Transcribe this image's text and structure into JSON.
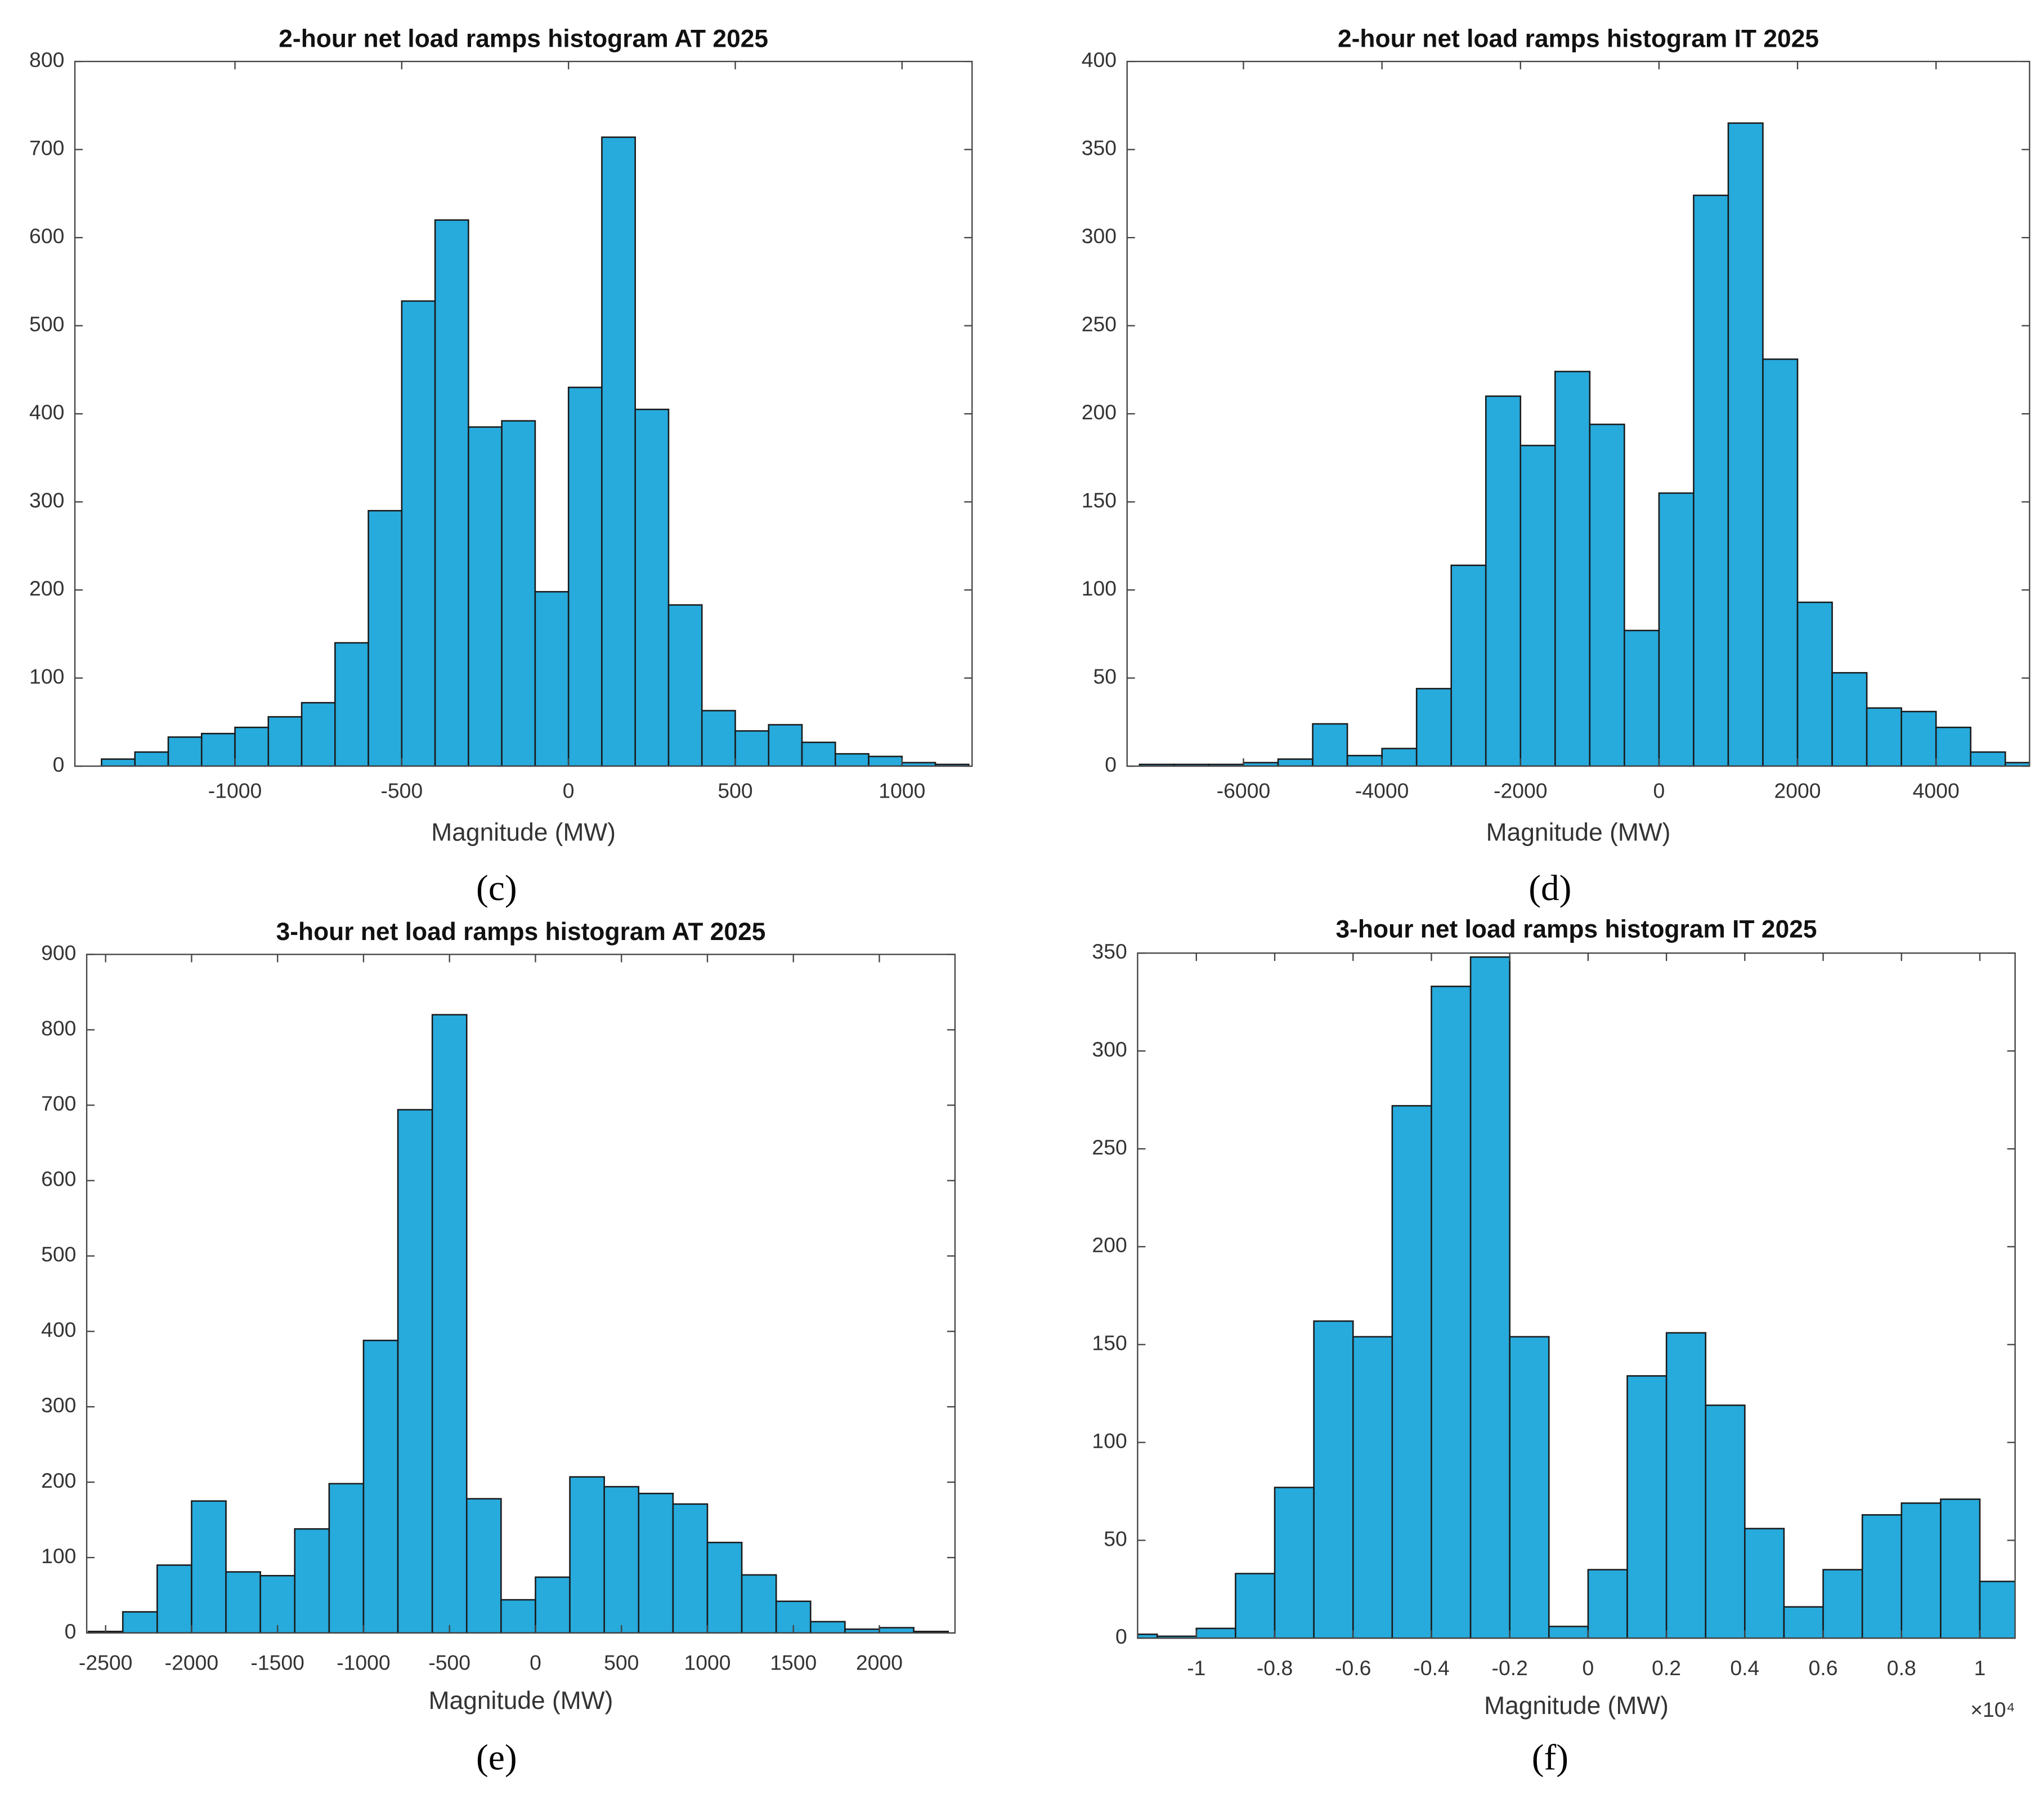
{
  "chart_data": [
    {
      "type": "histogram",
      "title": "2-hour net load ramps histogram AT 2025",
      "xlabel": "Magnitude (MW)",
      "panel_label": "(c)",
      "color": "#27aadc",
      "bins": [
        -1400,
        -1300,
        -1200,
        -1100,
        -1000,
        -900,
        -800,
        -700,
        -600,
        -500,
        -400,
        -300,
        -200,
        -100,
        0,
        100,
        200,
        300,
        400,
        500,
        600,
        700,
        800,
        900,
        1000,
        1100,
        1200
      ],
      "counts": [
        8,
        16,
        33,
        37,
        44,
        56,
        72,
        140,
        290,
        528,
        620,
        385,
        392,
        198,
        430,
        714,
        405,
        183,
        63,
        40,
        47,
        27,
        14,
        11,
        4,
        2
      ],
      "xlim": [
        -1480,
        1210
      ],
      "ylim": [
        0,
        800
      ],
      "xticks": [
        -1000,
        -500,
        0,
        500,
        1000
      ],
      "yticks": [
        0,
        100,
        200,
        300,
        400,
        500,
        600,
        700,
        800
      ]
    },
    {
      "type": "histogram",
      "title": "2-hour net load ramps histogram IT 2025",
      "xlabel": "Magnitude (MW)",
      "panel_label": "(d)",
      "color": "#27aadc",
      "bins": [
        -7500,
        -7000,
        -6500,
        -6000,
        -5500,
        -5000,
        -4500,
        -4000,
        -3500,
        -3000,
        -2500,
        -2000,
        -1500,
        -1000,
        -500,
        0,
        500,
        1000,
        1500,
        2000,
        2500,
        3000,
        3500,
        4000,
        4500,
        5000,
        5500
      ],
      "counts": [
        1,
        1,
        1,
        2,
        4,
        24,
        6,
        10,
        44,
        114,
        210,
        182,
        224,
        194,
        77,
        155,
        324,
        365,
        231,
        93,
        53,
        33,
        31,
        22,
        8,
        2
      ],
      "xlim": [
        -7680,
        5350
      ],
      "ylim": [
        0,
        400
      ],
      "xticks": [
        -6000,
        -4000,
        -2000,
        0,
        2000,
        4000
      ],
      "yticks": [
        0,
        50,
        100,
        150,
        200,
        250,
        300,
        350,
        400
      ]
    },
    {
      "type": "histogram",
      "title": "3-hour net load ramps histogram AT 2025",
      "xlabel": "Magnitude (MW)",
      "panel_label": "(e)",
      "color": "#27aadc",
      "bins": [
        -2600,
        -2400,
        -2200,
        -2000,
        -1800,
        -1600,
        -1400,
        -1200,
        -1000,
        -800,
        -600,
        -400,
        -200,
        0,
        200,
        400,
        600,
        800,
        1000,
        1200,
        1400,
        1600,
        1800,
        2000,
        2200,
        2400
      ],
      "counts": [
        2,
        28,
        90,
        175,
        81,
        76,
        138,
        198,
        388,
        694,
        820,
        178,
        44,
        74,
        207,
        194,
        185,
        171,
        120,
        77,
        42,
        15,
        5,
        7,
        2
      ],
      "xlim": [
        -2610,
        2440
      ],
      "ylim": [
        0,
        900
      ],
      "xticks": [
        -2500,
        -2000,
        -1500,
        -1000,
        -500,
        0,
        500,
        1000,
        1500,
        2000
      ],
      "yticks": [
        0,
        100,
        200,
        300,
        400,
        500,
        600,
        700,
        800,
        900
      ]
    },
    {
      "type": "histogram",
      "title": "3-hour net load ramps histogram IT 2025",
      "xlabel": "Magnitude (MW)",
      "panel_label": "(f)",
      "x_exponent": "×10⁴",
      "color": "#27aadc",
      "bins": [
        -1.2,
        -1.1,
        -1.0,
        -0.9,
        -0.8,
        -0.7,
        -0.6,
        -0.5,
        -0.4,
        -0.3,
        -0.2,
        -0.1,
        0,
        0.1,
        0.2,
        0.3,
        0.4,
        0.5,
        0.6,
        0.7,
        0.8,
        0.9,
        1.0,
        1.1
      ],
      "counts": [
        2,
        1,
        5,
        33,
        77,
        162,
        154,
        272,
        333,
        348,
        154,
        6,
        35,
        134,
        156,
        119,
        56,
        16,
        35,
        63,
        69,
        71,
        29
      ],
      "xlim": [
        -1.15,
        1.09
      ],
      "ylim": [
        0,
        350
      ],
      "xticks": [
        -1,
        -0.8,
        -0.6,
        -0.4,
        -0.2,
        0,
        0.2,
        0.4,
        0.6,
        0.8,
        1
      ],
      "yticks": [
        0,
        50,
        100,
        150,
        200,
        250,
        300,
        350
      ]
    }
  ]
}
